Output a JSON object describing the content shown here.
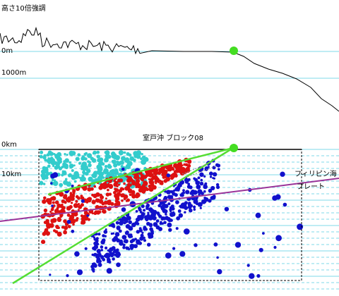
{
  "header": {
    "title": "高さ10倍強調"
  },
  "profile": {
    "labels": [
      "0m",
      "1000m"
    ]
  },
  "section": {
    "depth_labels": [
      "0km",
      "10km"
    ],
    "title": "室戸沖 ブロック08",
    "plate_label": [
      "フィリピン海",
      "プレート"
    ]
  }
}
